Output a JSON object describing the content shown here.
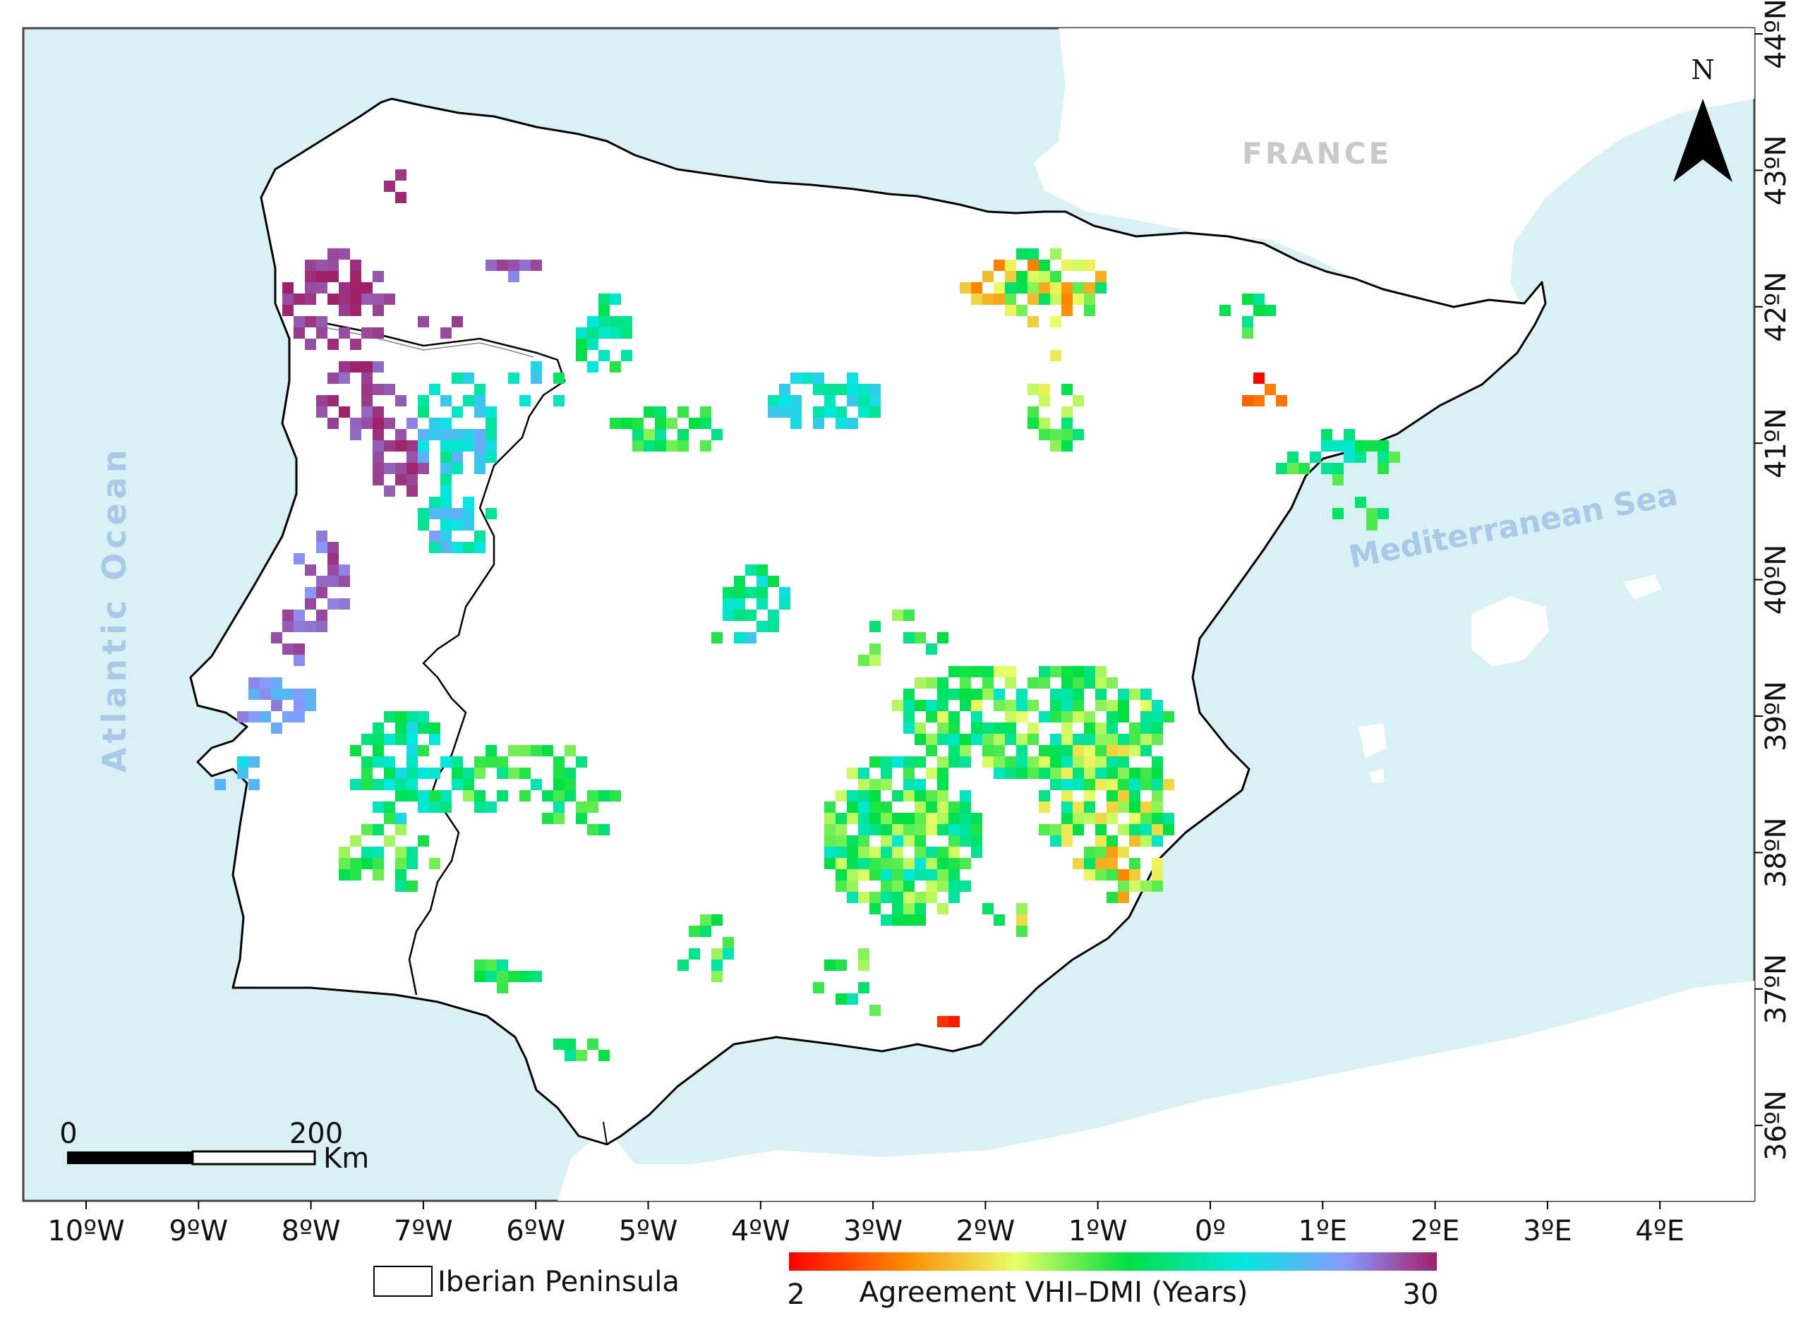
{
  "map": {
    "place_labels": {
      "france": "FRANCE",
      "atlantic": "Atlantic Ocean",
      "mediterranean": "Mediterranean Sea"
    },
    "north_arrow": {
      "label": "N",
      "icon": "north-arrow-icon"
    },
    "scale_bar": {
      "start": "0",
      "end": "200",
      "unit": "Km"
    },
    "lon_ticks": [
      "10ºW",
      "9ºW",
      "8ºW",
      "7ºW",
      "6ºW",
      "5ºW",
      "4ºW",
      "3ºW",
      "2ºW",
      "1ºW",
      "0º",
      "1ºE",
      "2ºE",
      "3ºE",
      "4ºE"
    ],
    "lat_ticks": [
      "44ºN",
      "43ºN",
      "42ºN",
      "41ºN",
      "40ºN",
      "39ºN",
      "38ºN",
      "37ºN",
      "36ºN"
    ],
    "colors": {
      "sea": "#d9f1f4",
      "land": "#ffffff",
      "coast": "#000000",
      "label_grey": "#c9c9c9",
      "label_blue": "#a9c9e8"
    }
  },
  "legend": {
    "boundary_label": "Iberian Peninsula",
    "colorbar_title": "Agreement VHI–DMI (Years)",
    "colorbar_min": "2",
    "colorbar_max": "30",
    "colorbar_stops": [
      "#ff0000",
      "#ff8a00",
      "#e8ff66",
      "#00e040",
      "#00e8e0",
      "#8899ff",
      "#a0206a"
    ]
  }
}
